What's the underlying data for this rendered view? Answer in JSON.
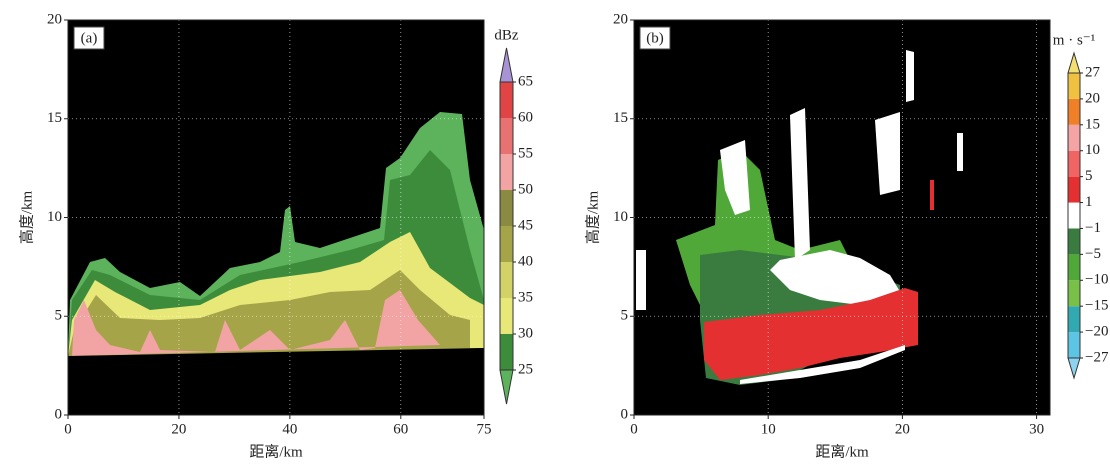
{
  "chart_data": [
    {
      "type": "heatmap",
      "panel_label": "(a)",
      "xlabel": "距离/km",
      "ylabel": "高度/km",
      "xlim": [
        0,
        75
      ],
      "xticks": [
        0,
        20,
        40,
        60,
        75
      ],
      "ylim": [
        0,
        20
      ],
      "yticks": [
        0,
        5,
        10,
        15,
        20
      ],
      "grid": true,
      "colorbar": {
        "unit": "dBz",
        "levels": [
          25,
          30,
          35,
          40,
          45,
          50,
          55,
          60,
          65
        ],
        "colors": [
          "#5cb35c",
          "#3c8c3c",
          "#e8e878",
          "#d2d268",
          "#a6a448",
          "#8a8a42",
          "#f2a4a4",
          "#e87272",
          "#e04444",
          "#a894d4",
          "#5a3c9c"
        ]
      }
    },
    {
      "type": "heatmap",
      "panel_label": "(b)",
      "xlabel": "距离/km",
      "ylabel": "高度/km",
      "xlim": [
        0,
        31
      ],
      "xticks": [
        0,
        10,
        20,
        30
      ],
      "ylim": [
        0,
        20
      ],
      "yticks": [
        0,
        5,
        10,
        15,
        20
      ],
      "grid": true,
      "colorbar": {
        "unit": "m · s⁻¹",
        "levels": [
          {
            "value": -27,
            "label": "−27"
          },
          {
            "value": -20,
            "label": "−20"
          },
          {
            "value": -15,
            "label": "−15"
          },
          {
            "value": -10,
            "label": "−10"
          },
          {
            "value": -5,
            "label": "−5"
          },
          {
            "value": -1,
            "label": "−1"
          },
          1,
          5,
          10,
          15,
          20,
          27
        ],
        "colors": [
          "#8cd4f0",
          "#5cc4e4",
          "#30aab0",
          "#78c048",
          "#50a838",
          "#3a7c40",
          "#ffffff",
          "#e43030",
          "#f06464",
          "#f4a4a4",
          "#f08028",
          "#f0c040",
          "#f4e070"
        ]
      }
    }
  ]
}
